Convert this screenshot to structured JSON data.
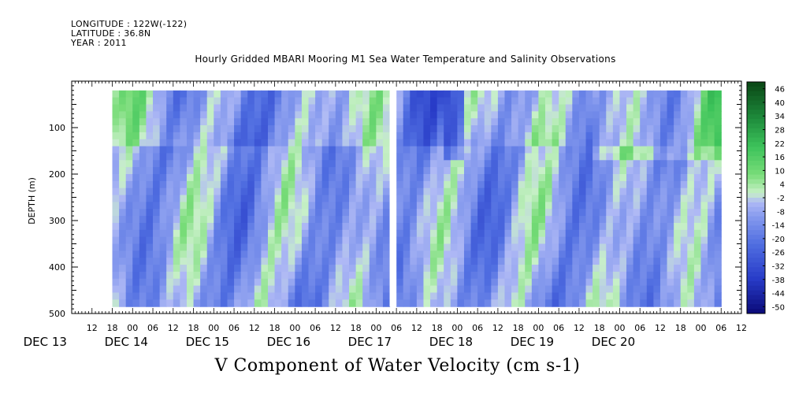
{
  "header": {
    "longitude": "LONGITUDE : 122W(-122)",
    "latitude": "LATITUDE : 36.8N",
    "year": "YEAR : 2011"
  },
  "chart_title": "Hourly Gridded MBARI Mooring M1 Sea Water Temperature and Salinity Observations",
  "chart_data": {
    "type": "heatmap",
    "title": "V Component of Water Velocity (cm s-1)",
    "ylabel": "DEPTH (m)",
    "xlabel": "",
    "y_inverted": true,
    "ylim": [
      500,
      0
    ],
    "y_ticks": [
      100,
      200,
      300,
      400,
      500
    ],
    "x_hour_ticks": [
      "12",
      "18",
      "00",
      "06",
      "12",
      "18",
      "00",
      "06",
      "12",
      "18",
      "00",
      "06",
      "12",
      "18",
      "00",
      "06",
      "12",
      "18",
      "00",
      "06",
      "12",
      "18",
      "00",
      "06",
      "12",
      "18",
      "00",
      "06",
      "12",
      "18",
      "00",
      "06",
      "12",
      "18",
      "00",
      "06",
      "12",
      "18",
      "00",
      "06"
    ],
    "x_date_labels": [
      "DEC 13",
      "DEC 14",
      "DEC 15",
      "DEC 16",
      "DEC 17",
      "DEC 18",
      "DEC 19",
      "DEC 20"
    ],
    "time_range": [
      "2011-12-13 06:00",
      "2011-12-21 12:00"
    ],
    "data_start": "2011-12-13 18:00",
    "data_end": "2011-12-21 06:00",
    "data_gap": [
      "2011-12-17 04:00",
      "2011-12-17 06:00"
    ],
    "depth_range_data": [
      20,
      485
    ],
    "colorbar": {
      "labels": [
        "46",
        "40",
        "34",
        "28",
        "22",
        "16",
        "10",
        "4",
        "-2",
        "-8",
        "-14",
        "-20",
        "-26",
        "-32",
        "-38",
        "-44",
        "-50"
      ],
      "min": -50,
      "max": 50
    },
    "colors": {
      "negative_strong": "#0a0a78",
      "negative_mid": "#3c5ad2",
      "neutral": "#a8b4f0",
      "positive_mid": "#3cc85a",
      "positive_strong": "#0a4614"
    }
  }
}
